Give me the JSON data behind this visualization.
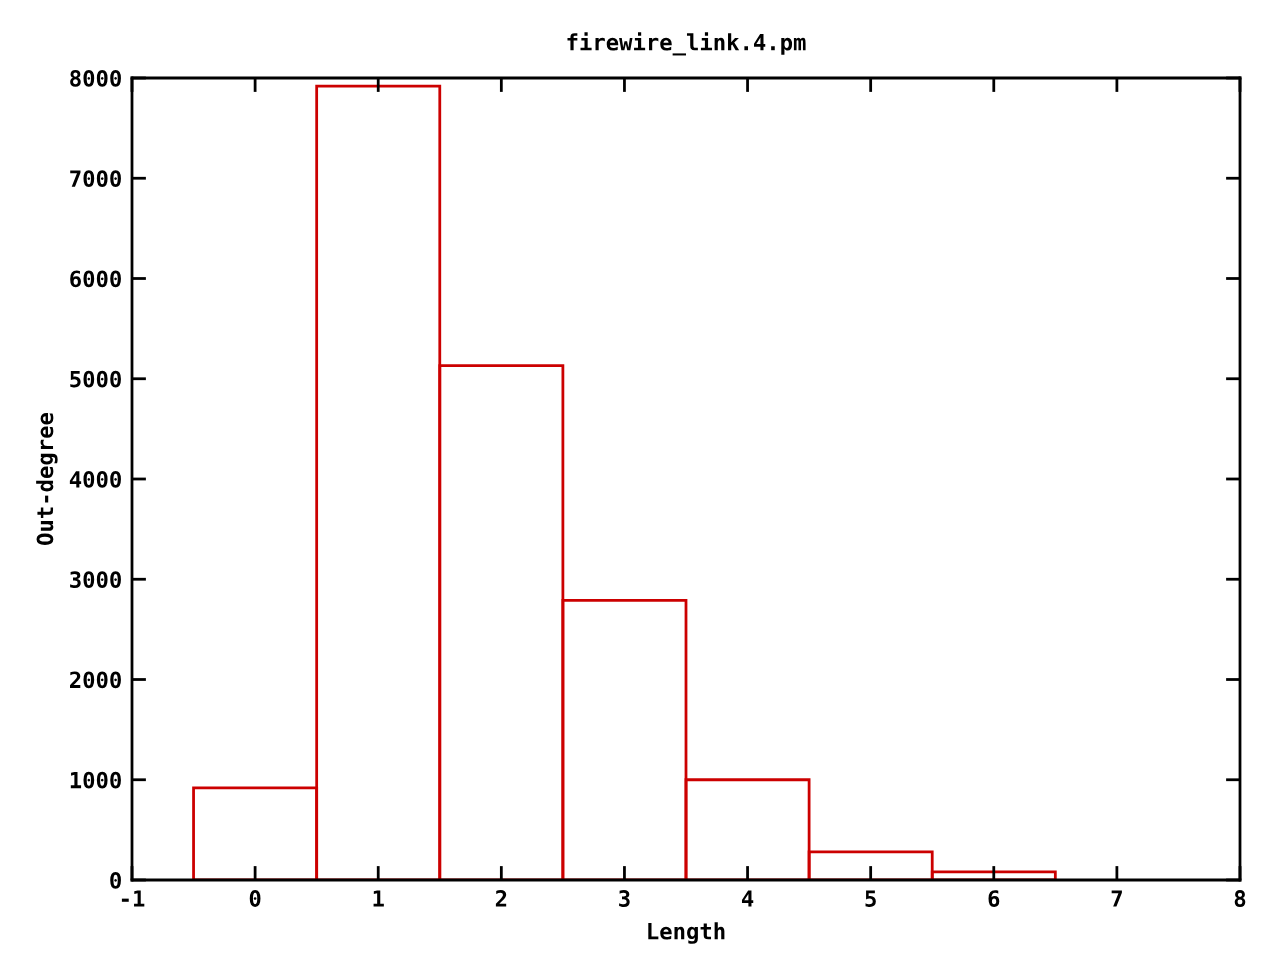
{
  "chart_data": {
    "type": "histogram",
    "title": "firewire_link.4.pm",
    "xlabel": "Length",
    "ylabel": "Out-degree",
    "bins": [
      -0.5,
      0.5,
      1.5,
      2.5,
      3.5,
      4.5,
      5.5,
      6.5
    ],
    "values": [
      920,
      7920,
      5130,
      2790,
      1000,
      280,
      80
    ],
    "color": "#cc0000",
    "xlim": [
      -1,
      8
    ],
    "xticks": [
      -1,
      0,
      1,
      2,
      3,
      4,
      5,
      6,
      7,
      8
    ],
    "ylim": [
      0,
      8000
    ],
    "yticks": [
      0,
      1000,
      2000,
      3000,
      4000,
      5000,
      6000,
      7000,
      8000
    ],
    "grid": false
  }
}
